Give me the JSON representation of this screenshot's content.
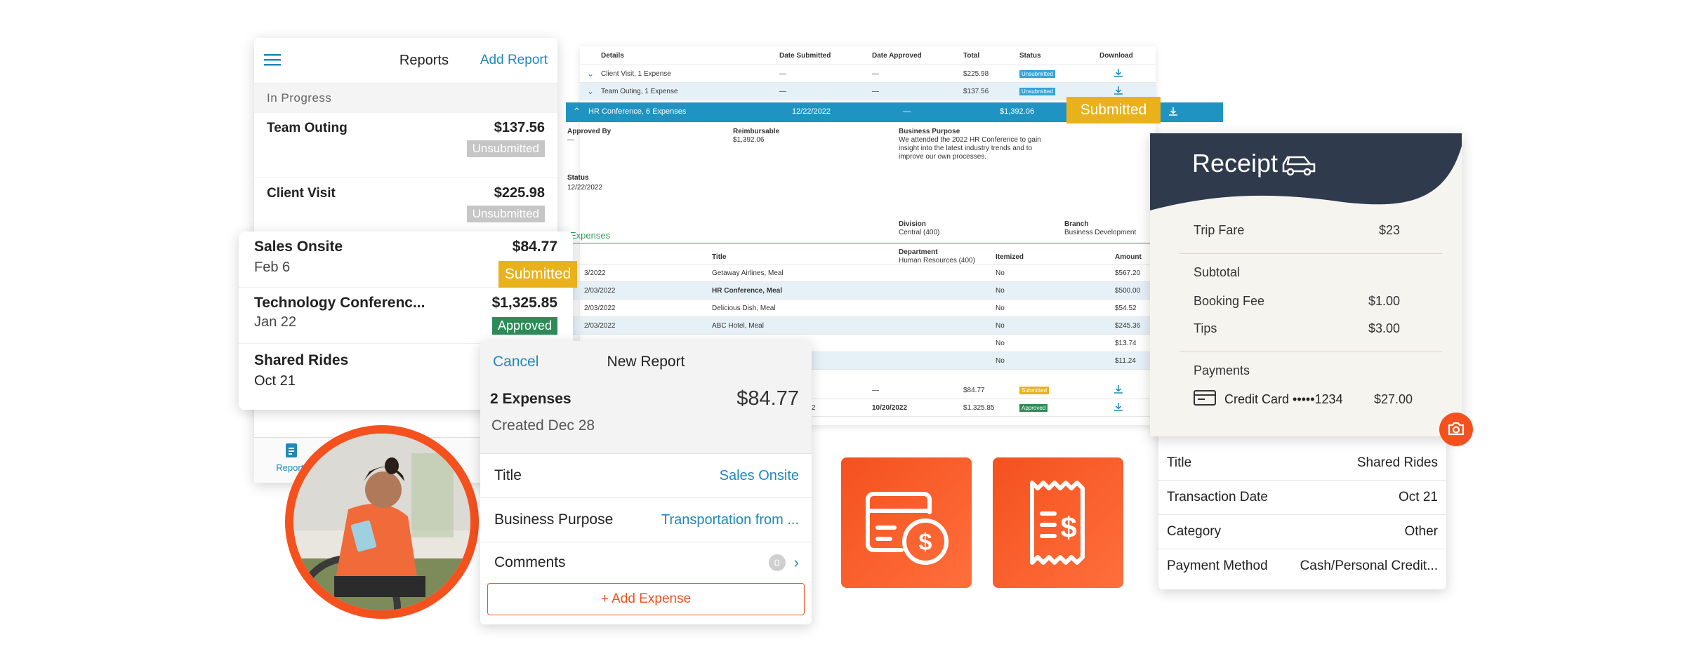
{
  "reports_card": {
    "title": "Reports",
    "add_report": "Add Report",
    "section": "In Progress",
    "items": [
      {
        "name": "Team Outing",
        "amount": "$137.56",
        "status": "Unsubmitted"
      },
      {
        "name": "Client Visit",
        "amount": "$225.98",
        "status": "Unsubmitted"
      }
    ],
    "tab_label": "Reports"
  },
  "list_card": {
    "items": [
      {
        "name": "Sales Onsite",
        "date": "Feb 6",
        "amount": "$84.77",
        "status": "Submitted"
      },
      {
        "name": "Technology Conferenc...",
        "date": "Jan 22",
        "amount": "$1,325.85",
        "status": "Approved"
      },
      {
        "name": "Shared Rides",
        "date": "Oct 21",
        "amount": "",
        "status": ""
      }
    ]
  },
  "table": {
    "headers": [
      "Details",
      "Date Submitted",
      "Date Approved",
      "Total",
      "Status",
      "Download"
    ],
    "rows": [
      {
        "details": "Client Visit, 1 Expense",
        "submitted": "—",
        "approved": "—",
        "total": "$225.98",
        "status": "Unsubmitted"
      },
      {
        "details": "Team Outing, 1 Expense",
        "submitted": "—",
        "approved": "—",
        "total": "$137.56",
        "status": "Unsubmitted"
      }
    ],
    "expanded": {
      "details": "HR Conference, 6 Expenses",
      "submitted": "12/22/2022",
      "approved": "—",
      "total": "$1,392.06",
      "status": "Submitted",
      "approved_by_label": "Approved By",
      "approved_by_value": "—",
      "reimbursable_label": "Reimbursable",
      "reimbursable_value": "$1,392.06",
      "purpose_label": "Business Purpose",
      "purpose_value": "We attended the 2022 HR Conference to gain insight into the latest industry trends and to improve our own processes.",
      "status_label": "Status",
      "status_value": "12/22/2022",
      "division_label": "Division",
      "division_value": "Central (400)",
      "branch_label": "Branch",
      "branch_value": "Business Development",
      "department_label": "Department",
      "department_value": "Human Resources (400)",
      "expenses_label": "Expenses",
      "expense_headers": [
        "Title",
        "Itemized",
        "Amount"
      ],
      "expenses": [
        {
          "date": "3/2022",
          "title": "Getaway Airlines, Meal",
          "itemized": "No",
          "amount": "$567.20"
        },
        {
          "date": "2/03/2022",
          "title": "HR Conference, Meal",
          "itemized": "No",
          "amount": "$500.00"
        },
        {
          "date": "2/03/2022",
          "title": "Delicious Dish, Meal",
          "itemized": "No",
          "amount": "$54.52"
        },
        {
          "date": "2/03/2022",
          "title": "ABC Hotel, Meal",
          "itemized": "No",
          "amount": "$245.36"
        },
        {
          "date": "",
          "title": "",
          "itemized": "No",
          "amount": "$13.74"
        },
        {
          "date": "",
          "title": "",
          "itemized": "No",
          "amount": "$11.24"
        }
      ]
    },
    "bottom_rows": [
      {
        "submitted": "",
        "approved": "—",
        "total": "$84.77",
        "status": "Submitted"
      },
      {
        "submitted": "2",
        "approved": "10/20/2022",
        "total": "$1,325.85",
        "status": "Approved"
      }
    ]
  },
  "new_report": {
    "cancel": "Cancel",
    "title": "New Report",
    "expenses_count": "2 Expenses",
    "total": "$84.77",
    "created": "Created Dec 28",
    "fields": [
      {
        "label": "Title",
        "value": "Sales Onsite"
      },
      {
        "label": "Business Purpose",
        "value": "Transportation from ..."
      },
      {
        "label": "Comments",
        "value": "0"
      }
    ],
    "add_expense": "+ Add Expense"
  },
  "receipt": {
    "title": "Receipt",
    "trip_fare_label": "Trip Fare",
    "trip_fare": "$23",
    "subtotal_label": "Subtotal",
    "booking_fee_label": "Booking Fee",
    "booking_fee": "$1.00",
    "tips_label": "Tips",
    "tips": "$3.00",
    "payments_label": "Payments",
    "card_label": "Credit Card •••••1234",
    "card_amount": "$27.00"
  },
  "details_card": {
    "rows": [
      {
        "label": "Title",
        "value": "Shared Rides"
      },
      {
        "label": "Transaction Date",
        "value": "Oct 21"
      },
      {
        "label": "Category",
        "value": "Other"
      },
      {
        "label": "Payment Method",
        "value": "Cash/Personal Credit..."
      }
    ]
  },
  "colors": {
    "accent_blue": "#1f88b8",
    "header_teal": "#1f94c3",
    "submitted": "#e9b21c",
    "approved": "#2e8b57",
    "orange": "#f4511e",
    "receipt_navy": "#2f3a4d"
  },
  "icons": [
    "menu-icon",
    "chevron-down-icon",
    "chevron-up-icon",
    "download-icon",
    "car-icon",
    "camera-icon",
    "credit-card-icon",
    "card-dollar-icon",
    "receipt-dollar-icon",
    "chevron-right-icon",
    "reports-tab-icon"
  ]
}
